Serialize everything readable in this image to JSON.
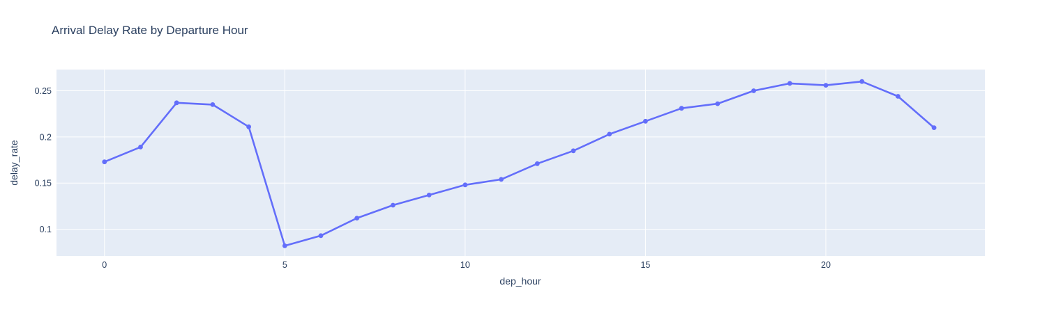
{
  "chart_data": {
    "type": "line",
    "mode": "lines+markers",
    "title": "Arrival Delay Rate by Departure Hour",
    "xlabel": "dep_hour",
    "ylabel": "delay_rate",
    "series_name": "delay_rate",
    "x": [
      0,
      1,
      2,
      3,
      4,
      5,
      6,
      7,
      8,
      9,
      10,
      11,
      12,
      13,
      14,
      15,
      16,
      17,
      18,
      19,
      20,
      21,
      22,
      23
    ],
    "y": [
      0.173,
      0.189,
      0.237,
      0.235,
      0.211,
      0.082,
      0.093,
      0.112,
      0.126,
      0.137,
      0.148,
      0.154,
      0.171,
      0.185,
      0.203,
      0.217,
      0.231,
      0.236,
      0.25,
      0.258,
      0.256,
      0.26,
      0.244,
      0.21
    ],
    "xlim": [
      -1.33,
      24.41
    ],
    "ylim": [
      0.071,
      0.273
    ],
    "xticks": {
      "values": [
        0,
        5,
        10,
        15,
        20
      ],
      "labels": [
        "0",
        "5",
        "10",
        "15",
        "20"
      ]
    },
    "yticks": {
      "values": [
        0.1,
        0.15,
        0.2,
        0.25
      ],
      "labels": [
        "0.1",
        "0.15",
        "0.2",
        "0.25"
      ]
    },
    "grid": true,
    "legend": false,
    "colors": {
      "line": "#636efa",
      "marker": "#636efa",
      "plot_bg": "#e5ecf6",
      "grid": "#ffffff",
      "text": "#2a3f5f",
      "paper_bg": "#ffffff"
    }
  }
}
